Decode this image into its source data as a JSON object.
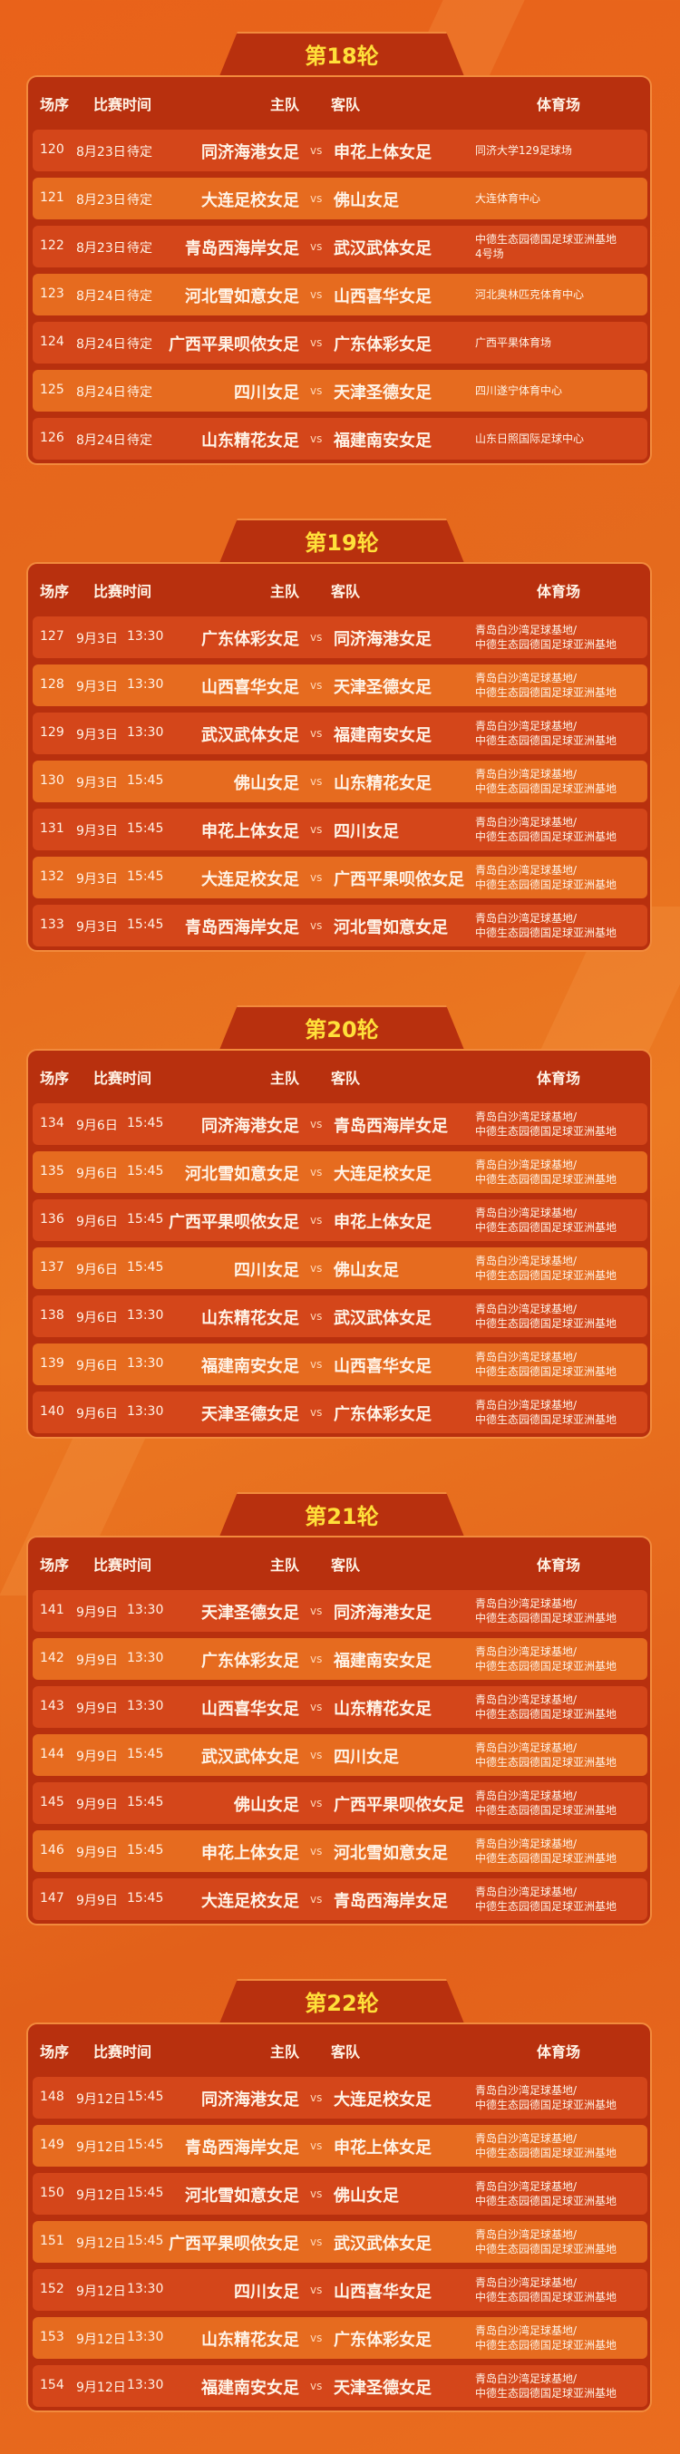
{
  "header": {
    "no": "场序",
    "time": "比赛时间",
    "home": "主队",
    "away": "客队",
    "venue": "体育场"
  },
  "vs_label": "vs",
  "colors": {
    "background": "#e8651a",
    "panel": "#b8300e",
    "row_dark": "#d4461a",
    "row_light": "#e66b1f",
    "title": "#ffe03a",
    "border": "#f28a3c"
  },
  "rounds": [
    {
      "title": "第18轮",
      "matches": [
        {
          "no": "120",
          "date": "8月23日",
          "time": "待定",
          "home": "同济海港女足",
          "away": "申花上体女足",
          "venue": "同济大学129足球场"
        },
        {
          "no": "121",
          "date": "8月23日",
          "time": "待定",
          "home": "大连足校女足",
          "away": "佛山女足",
          "venue": "大连体育中心"
        },
        {
          "no": "122",
          "date": "8月23日",
          "time": "待定",
          "home": "青岛西海岸女足",
          "away": "武汉武体女足",
          "venue": "中德生态园德国足球亚洲基地\n4号场"
        },
        {
          "no": "123",
          "date": "8月24日",
          "time": "待定",
          "home": "河北雪如意女足",
          "away": "山西喜华女足",
          "venue": "河北奥林匹克体育中心"
        },
        {
          "no": "124",
          "date": "8月24日",
          "time": "待定",
          "home": "广西平果呗侬女足",
          "away": "广东体彩女足",
          "venue": "广西平果体育场"
        },
        {
          "no": "125",
          "date": "8月24日",
          "time": "待定",
          "home": "四川女足",
          "away": "天津圣德女足",
          "venue": "四川遂宁体育中心"
        },
        {
          "no": "126",
          "date": "8月24日",
          "time": "待定",
          "home": "山东精花女足",
          "away": "福建南安女足",
          "venue": "山东日照国际足球中心"
        }
      ]
    },
    {
      "title": "第19轮",
      "matches": [
        {
          "no": "127",
          "date": "9月3日",
          "time": "13:30",
          "home": "广东体彩女足",
          "away": "同济海港女足",
          "venue": "青岛白沙湾足球基地/\n中德生态园德国足球亚洲基地"
        },
        {
          "no": "128",
          "date": "9月3日",
          "time": "13:30",
          "home": "山西喜华女足",
          "away": "天津圣德女足",
          "venue": "青岛白沙湾足球基地/\n中德生态园德国足球亚洲基地"
        },
        {
          "no": "129",
          "date": "9月3日",
          "time": "13:30",
          "home": "武汉武体女足",
          "away": "福建南安女足",
          "venue": "青岛白沙湾足球基地/\n中德生态园德国足球亚洲基地"
        },
        {
          "no": "130",
          "date": "9月3日",
          "time": "15:45",
          "home": "佛山女足",
          "away": "山东精花女足",
          "venue": "青岛白沙湾足球基地/\n中德生态园德国足球亚洲基地"
        },
        {
          "no": "131",
          "date": "9月3日",
          "time": "15:45",
          "home": "申花上体女足",
          "away": "四川女足",
          "venue": "青岛白沙湾足球基地/\n中德生态园德国足球亚洲基地"
        },
        {
          "no": "132",
          "date": "9月3日",
          "time": "15:45",
          "home": "大连足校女足",
          "away": "广西平果呗侬女足",
          "venue": "青岛白沙湾足球基地/\n中德生态园德国足球亚洲基地"
        },
        {
          "no": "133",
          "date": "9月3日",
          "time": "15:45",
          "home": "青岛西海岸女足",
          "away": "河北雪如意女足",
          "venue": "青岛白沙湾足球基地/\n中德生态园德国足球亚洲基地"
        }
      ]
    },
    {
      "title": "第20轮",
      "matches": [
        {
          "no": "134",
          "date": "9月6日",
          "time": "15:45",
          "home": "同济海港女足",
          "away": "青岛西海岸女足",
          "venue": "青岛白沙湾足球基地/\n中德生态园德国足球亚洲基地"
        },
        {
          "no": "135",
          "date": "9月6日",
          "time": "15:45",
          "home": "河北雪如意女足",
          "away": "大连足校女足",
          "venue": "青岛白沙湾足球基地/\n中德生态园德国足球亚洲基地"
        },
        {
          "no": "136",
          "date": "9月6日",
          "time": "15:45",
          "home": "广西平果呗侬女足",
          "away": "申花上体女足",
          "venue": "青岛白沙湾足球基地/\n中德生态园德国足球亚洲基地"
        },
        {
          "no": "137",
          "date": "9月6日",
          "time": "15:45",
          "home": "四川女足",
          "away": "佛山女足",
          "venue": "青岛白沙湾足球基地/\n中德生态园德国足球亚洲基地"
        },
        {
          "no": "138",
          "date": "9月6日",
          "time": "13:30",
          "home": "山东精花女足",
          "away": "武汉武体女足",
          "venue": "青岛白沙湾足球基地/\n中德生态园德国足球亚洲基地"
        },
        {
          "no": "139",
          "date": "9月6日",
          "time": "13:30",
          "home": "福建南安女足",
          "away": "山西喜华女足",
          "venue": "青岛白沙湾足球基地/\n中德生态园德国足球亚洲基地"
        },
        {
          "no": "140",
          "date": "9月6日",
          "time": "13:30",
          "home": "天津圣德女足",
          "away": "广东体彩女足",
          "venue": "青岛白沙湾足球基地/\n中德生态园德国足球亚洲基地"
        }
      ]
    },
    {
      "title": "第21轮",
      "matches": [
        {
          "no": "141",
          "date": "9月9日",
          "time": "13:30",
          "home": "天津圣德女足",
          "away": "同济海港女足",
          "venue": "青岛白沙湾足球基地/\n中德生态园德国足球亚洲基地"
        },
        {
          "no": "142",
          "date": "9月9日",
          "time": "13:30",
          "home": "广东体彩女足",
          "away": "福建南安女足",
          "venue": "青岛白沙湾足球基地/\n中德生态园德国足球亚洲基地"
        },
        {
          "no": "143",
          "date": "9月9日",
          "time": "13:30",
          "home": "山西喜华女足",
          "away": "山东精花女足",
          "venue": "青岛白沙湾足球基地/\n中德生态园德国足球亚洲基地"
        },
        {
          "no": "144",
          "date": "9月9日",
          "time": "15:45",
          "home": "武汉武体女足",
          "away": "四川女足",
          "venue": "青岛白沙湾足球基地/\n中德生态园德国足球亚洲基地"
        },
        {
          "no": "145",
          "date": "9月9日",
          "time": "15:45",
          "home": "佛山女足",
          "away": "广西平果呗侬女足",
          "venue": "青岛白沙湾足球基地/\n中德生态园德国足球亚洲基地"
        },
        {
          "no": "146",
          "date": "9月9日",
          "time": "15:45",
          "home": "申花上体女足",
          "away": "河北雪如意女足",
          "venue": "青岛白沙湾足球基地/\n中德生态园德国足球亚洲基地"
        },
        {
          "no": "147",
          "date": "9月9日",
          "time": "15:45",
          "home": "大连足校女足",
          "away": "青岛西海岸女足",
          "venue": "青岛白沙湾足球基地/\n中德生态园德国足球亚洲基地"
        }
      ]
    },
    {
      "title": "第22轮",
      "matches": [
        {
          "no": "148",
          "date": "9月12日",
          "time": "15:45",
          "home": "同济海港女足",
          "away": "大连足校女足",
          "venue": "青岛白沙湾足球基地/\n中德生态园德国足球亚洲基地"
        },
        {
          "no": "149",
          "date": "9月12日",
          "time": "15:45",
          "home": "青岛西海岸女足",
          "away": "申花上体女足",
          "venue": "青岛白沙湾足球基地/\n中德生态园德国足球亚洲基地"
        },
        {
          "no": "150",
          "date": "9月12日",
          "time": "15:45",
          "home": "河北雪如意女足",
          "away": "佛山女足",
          "venue": "青岛白沙湾足球基地/\n中德生态园德国足球亚洲基地"
        },
        {
          "no": "151",
          "date": "9月12日",
          "time": "15:45",
          "home": "广西平果呗侬女足",
          "away": "武汉武体女足",
          "venue": "青岛白沙湾足球基地/\n中德生态园德国足球亚洲基地"
        },
        {
          "no": "152",
          "date": "9月12日",
          "time": "13:30",
          "home": "四川女足",
          "away": "山西喜华女足",
          "venue": "青岛白沙湾足球基地/\n中德生态园德国足球亚洲基地"
        },
        {
          "no": "153",
          "date": "9月12日",
          "time": "13:30",
          "home": "山东精花女足",
          "away": "广东体彩女足",
          "venue": "青岛白沙湾足球基地/\n中德生态园德国足球亚洲基地"
        },
        {
          "no": "154",
          "date": "9月12日",
          "time": "13:30",
          "home": "福建南安女足",
          "away": "天津圣德女足",
          "venue": "青岛白沙湾足球基地/\n中德生态园德国足球亚洲基地"
        }
      ]
    }
  ]
}
